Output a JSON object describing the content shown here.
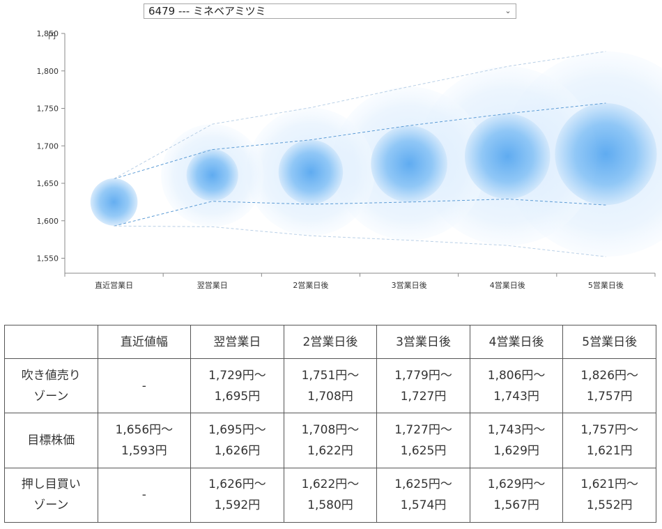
{
  "selector": {
    "value": "6479 --- ミネベアミツミ"
  },
  "chart_data": {
    "type": "bubble_forecast",
    "y_unit": "円",
    "ylim": [
      1530,
      1850
    ],
    "yticks": [
      1550,
      1600,
      1650,
      1700,
      1750,
      1800,
      1850
    ],
    "ytick_labels": [
      "1,550",
      "1,600",
      "1,650",
      "1,700",
      "1,750",
      "1,800",
      "1,850"
    ],
    "categories": [
      "直近営業日",
      "翌営業日",
      "2営業日後",
      "3営業日後",
      "4営業日後",
      "5営業日後"
    ],
    "center": [
      1625,
      1661,
      1665,
      1676,
      1686,
      1689
    ],
    "target_high": [
      1656,
      1695,
      1708,
      1727,
      1743,
      1757
    ],
    "target_low": [
      1593,
      1626,
      1622,
      1625,
      1629,
      1621
    ],
    "zone_high": [
      1656,
      1729,
      1751,
      1779,
      1806,
      1826
    ],
    "zone_low": [
      1593,
      1592,
      1580,
      1574,
      1567,
      1552
    ],
    "grid": false,
    "colors": {
      "bubble_core": "#5aaaf0",
      "bubble_edge": "#dff0ff",
      "dash": "#5b9bd5"
    }
  },
  "table": {
    "headers": [
      "",
      "直近値幅",
      "翌営業日",
      "2営業日後",
      "3営業日後",
      "4営業日後",
      "5営業日後"
    ],
    "rows": [
      {
        "label": [
          "吹き値売り",
          "ゾーン"
        ],
        "cells": [
          [
            "-"
          ],
          [
            "1,729円～",
            "1,695円"
          ],
          [
            "1,751円～",
            "1,708円"
          ],
          [
            "1,779円～",
            "1,727円"
          ],
          [
            "1,806円～",
            "1,743円"
          ],
          [
            "1,826円～",
            "1,757円"
          ]
        ]
      },
      {
        "label": [
          "目標株価"
        ],
        "cells": [
          [
            "1,656円～",
            "1,593円"
          ],
          [
            "1,695円～",
            "1,626円"
          ],
          [
            "1,708円～",
            "1,622円"
          ],
          [
            "1,727円～",
            "1,625円"
          ],
          [
            "1,743円～",
            "1,629円"
          ],
          [
            "1,757円～",
            "1,621円"
          ]
        ]
      },
      {
        "label": [
          "押し目買い",
          "ゾーン"
        ],
        "cells": [
          [
            "-"
          ],
          [
            "1,626円～",
            "1,592円"
          ],
          [
            "1,622円～",
            "1,580円"
          ],
          [
            "1,625円～",
            "1,574円"
          ],
          [
            "1,629円～",
            "1,567円"
          ],
          [
            "1,621円～",
            "1,552円"
          ]
        ]
      }
    ]
  }
}
